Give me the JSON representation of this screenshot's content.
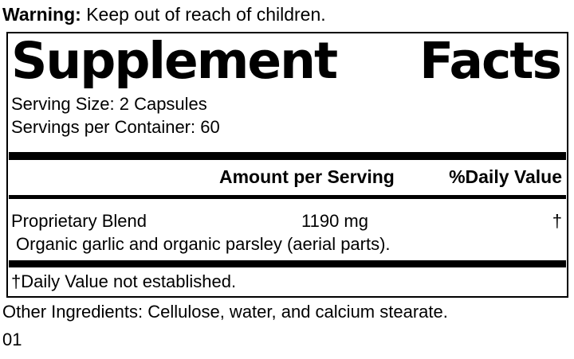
{
  "colors": {
    "ink": "#000000",
    "paper": "#ffffff"
  },
  "warning": {
    "label": "Warning:",
    "text": "Keep out of reach of children."
  },
  "panel": {
    "title_words": [
      "Supplement",
      "Facts"
    ],
    "serving_size": "Serving Size: 2 Capsules",
    "servings_per_container": "Servings per Container: 60",
    "header": {
      "amount": "Amount per Serving",
      "daily_value": "%Daily Value"
    },
    "rows": [
      {
        "name": "Proprietary Blend",
        "amount": "1190 mg",
        "daily_value": "†",
        "description": "Organic garlic and organic parsley (aerial parts)."
      }
    ],
    "footnote": "†Daily Value not established."
  },
  "other_ingredients": "Other Ingredients: Cellulose, water, and calcium stearate.",
  "lot_code": "01"
}
